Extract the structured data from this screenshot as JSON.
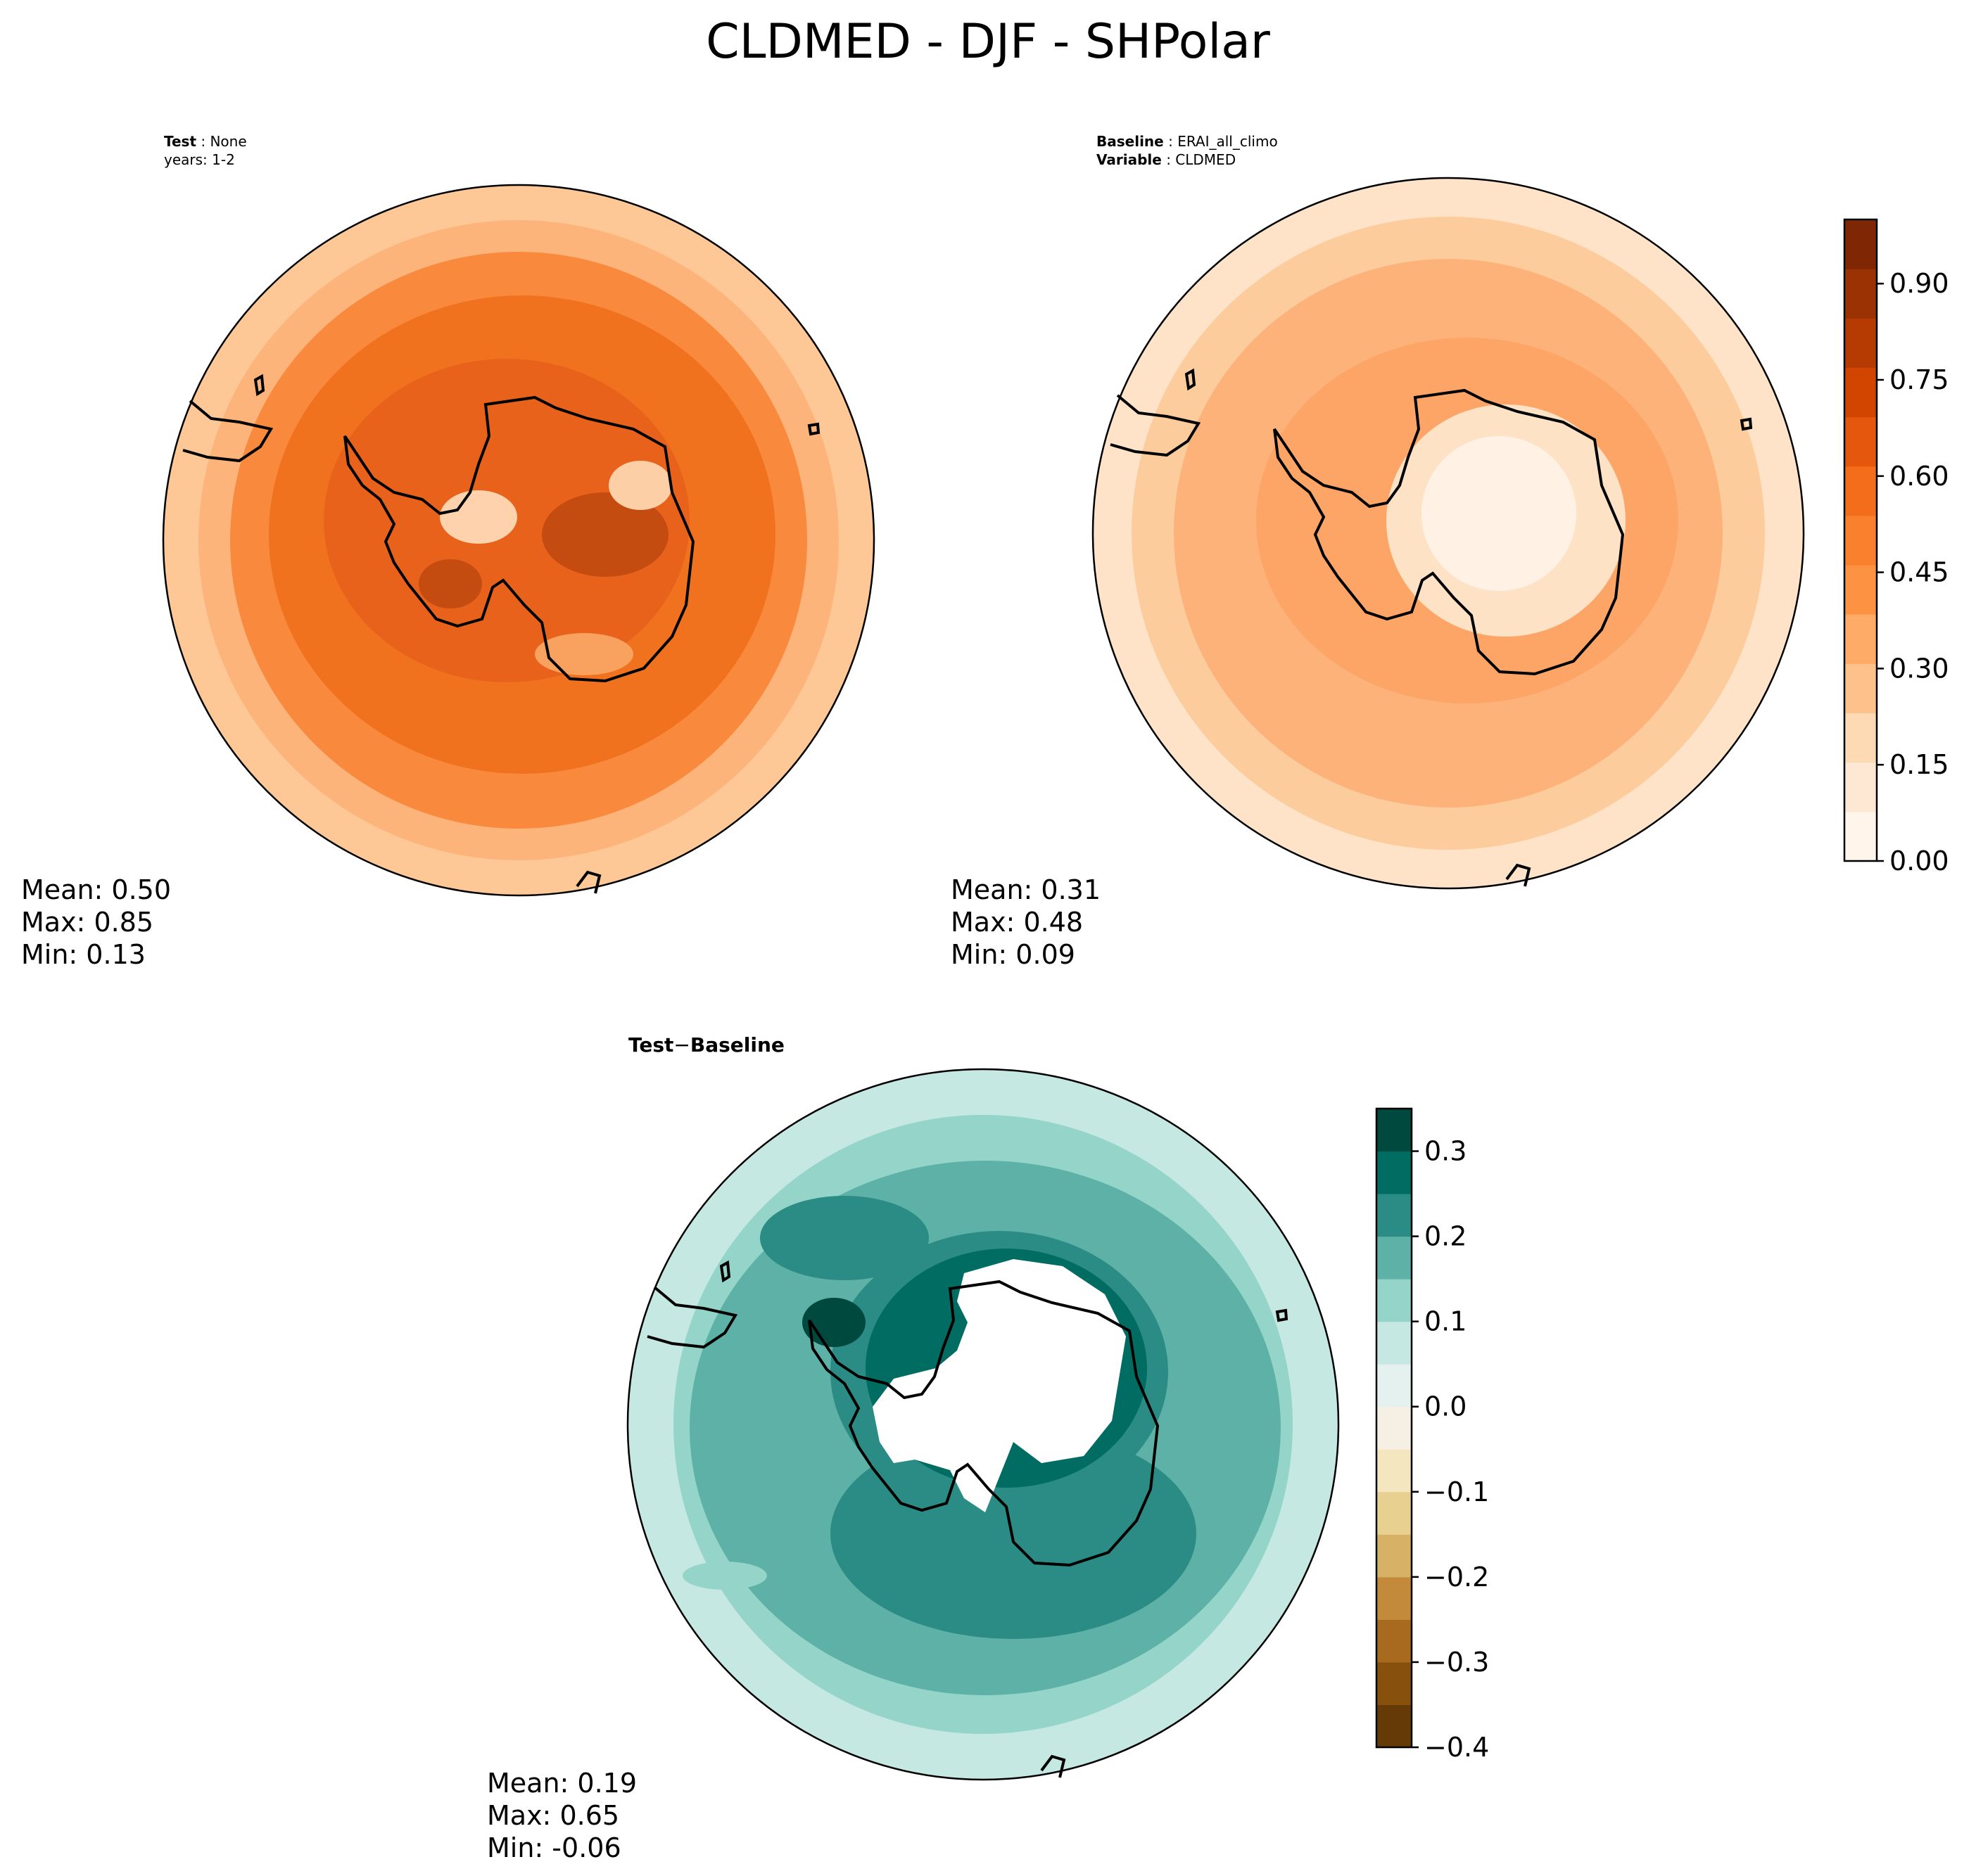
{
  "title": "CLDMED - DJF - SHPolar",
  "panels": {
    "test": {
      "label_bold": "Test",
      "label_value": "None",
      "years": "years: 1-2",
      "mean": "Mean:  0.50",
      "max": "Max:  0.85",
      "min": "Min:  0.13"
    },
    "baseline": {
      "label_bold": "Baseline",
      "label_value": "ERAI_all_climo",
      "variable_bold": "Variable",
      "variable_value": "CLDMED",
      "mean": "Mean:  0.31",
      "max": "Max:  0.48",
      "min": "Min:  0.09"
    },
    "diff": {
      "label_bold": "Test",
      "label_minus": "−",
      "label_bold2": "Baseline",
      "mean": "Mean:  0.19",
      "max": "Max:  0.65",
      "min": "Min: -0.06"
    }
  },
  "chart_data": [
    {
      "type": "heatmap",
      "name": "Test",
      "projection": "south-polar-stereographic",
      "summary": {
        "mean": 0.5,
        "max": 0.85,
        "min": 0.13
      },
      "colormap": "Oranges",
      "levels": [
        0.0,
        0.05,
        0.1,
        0.15,
        0.2,
        0.25,
        0.3,
        0.35,
        0.4,
        0.45,
        0.5,
        0.55,
        0.6,
        0.65,
        0.7,
        0.75,
        0.8,
        0.85,
        0.9,
        0.95,
        1.0
      ]
    },
    {
      "type": "heatmap",
      "name": "Baseline",
      "projection": "south-polar-stereographic",
      "summary": {
        "mean": 0.31,
        "max": 0.48,
        "min": 0.09
      },
      "colormap": "Oranges",
      "levels": [
        0.0,
        0.05,
        0.1,
        0.15,
        0.2,
        0.25,
        0.3,
        0.35,
        0.4,
        0.45,
        0.5,
        0.55,
        0.6,
        0.65,
        0.7,
        0.75,
        0.8,
        0.85,
        0.9,
        0.95,
        1.0
      ],
      "colorbar": {
        "ticks": [
          "0.00",
          "0.15",
          "0.30",
          "0.45",
          "0.60",
          "0.75",
          "0.90"
        ],
        "range": [
          0.0,
          1.0
        ],
        "colors": [
          "#fff5eb",
          "#fee8d3",
          "#fdd9b4",
          "#fdc28c",
          "#fdab67",
          "#fd9243",
          "#f9802d",
          "#f36d1b",
          "#e4570c",
          "#d14501",
          "#b53b02",
          "#9a3203",
          "#7f2704"
        ]
      }
    },
    {
      "type": "heatmap",
      "name": "Test - Baseline",
      "projection": "south-polar-stereographic",
      "summary": {
        "mean": 0.19,
        "max": 0.65,
        "min": -0.06
      },
      "colormap": "BrBG",
      "colorbar": {
        "ticks": [
          "0.3",
          "0.2",
          "0.1",
          "0.0",
          "−0.1",
          "−0.2",
          "−0.3",
          "−0.4"
        ],
        "tick_values": [
          0.3,
          0.2,
          0.1,
          0.0,
          -0.1,
          -0.2,
          -0.3,
          -0.4
        ],
        "range": [
          -0.4,
          0.35
        ],
        "levels": [
          -0.4,
          -0.35,
          -0.3,
          -0.25,
          -0.2,
          -0.15,
          -0.1,
          -0.05,
          0.0,
          0.05,
          0.1,
          0.15,
          0.2,
          0.25,
          0.3,
          0.35
        ],
        "colors": [
          "#663a07",
          "#88500d",
          "#a86a1f",
          "#c38a3b",
          "#d6b166",
          "#e8d091",
          "#f4e6bf",
          "#f5f0e3",
          "#e4f1ee",
          "#c5e8e2",
          "#94d4c9",
          "#5db1a6",
          "#2a8c85",
          "#006c62",
          "#00493f"
        ]
      }
    }
  ]
}
